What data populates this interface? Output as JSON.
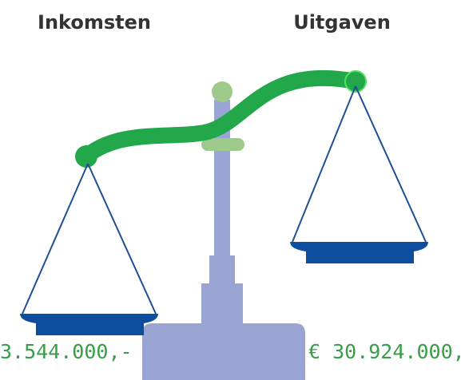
{
  "left": {
    "label": "Inkomsten",
    "amount": "3.544.000,-"
  },
  "right": {
    "label": "Uitgaven",
    "amount": "€ 30.924.000,"
  }
}
